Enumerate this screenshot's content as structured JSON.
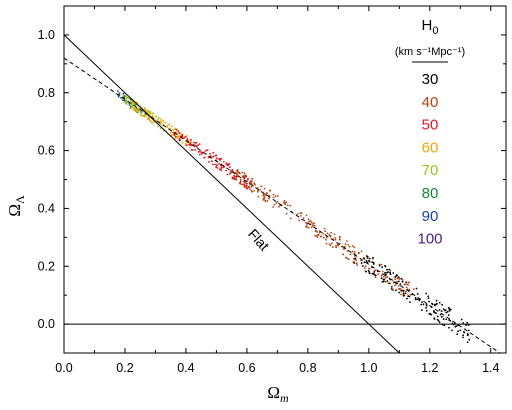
{
  "chart_data": {
    "type": "scatter",
    "xlabel": "Ωm",
    "ylabel": "ΩΛ",
    "xlim": [
      0.0,
      1.45
    ],
    "ylim": [
      -0.1,
      1.1
    ],
    "xticks": [
      0.0,
      0.2,
      0.4,
      0.6,
      0.8,
      1.0,
      1.2,
      1.4
    ],
    "yticks": [
      0.0,
      0.2,
      0.4,
      0.6,
      0.8,
      1.0
    ],
    "xtick_labels": [
      "0.0",
      "0.2",
      "0.4",
      "0.6",
      "0.8",
      "1.0",
      "1.2",
      "1.4"
    ],
    "ytick_labels": [
      "0.0",
      "0.2",
      "0.4",
      "0.6",
      "0.8",
      "1.0"
    ],
    "grid": false,
    "legend": {
      "title": "H",
      "title_sub": "0",
      "units": "(km s⁻¹Mpc⁻¹)",
      "placement": "top-right",
      "entries": [
        {
          "label": "30",
          "color": "#000000"
        },
        {
          "label": "40",
          "color": "#b8440f"
        },
        {
          "label": "50",
          "color": "#e8141e"
        },
        {
          "label": "60",
          "color": "#f5a30a"
        },
        {
          "label": "70",
          "color": "#96c81e"
        },
        {
          "label": "80",
          "color": "#138a3a"
        },
        {
          "label": "90",
          "color": "#1446a0"
        },
        {
          "label": "100",
          "color": "#4b1e82"
        }
      ]
    },
    "reference_lines": [
      {
        "kind": "flat",
        "label": "Flat",
        "style": "solid",
        "x": [
          0.0,
          1.1
        ],
        "y": [
          1.0,
          -0.1
        ]
      },
      {
        "kind": "fit",
        "style": "dashed",
        "x": [
          0.0,
          1.43
        ],
        "y": [
          0.92,
          -0.1
        ]
      },
      {
        "kind": "zero",
        "style": "solid",
        "x": [
          0.0,
          1.45
        ],
        "y": [
          0.0,
          0.0
        ]
      }
    ],
    "series": [
      {
        "color": "#4b1e82",
        "x_range": [
          0.17,
          0.21
        ],
        "n": 8
      },
      {
        "color": "#1446a0",
        "x_range": [
          0.17,
          0.23
        ],
        "n": 12
      },
      {
        "color": "#138a3a",
        "x_range": [
          0.18,
          0.27
        ],
        "n": 30
      },
      {
        "color": "#96c81e",
        "x_range": [
          0.19,
          0.32
        ],
        "n": 70
      },
      {
        "color": "#f5a30a",
        "x_range": [
          0.22,
          0.42
        ],
        "n": 110
      },
      {
        "color": "#e8141e",
        "x_range": [
          0.36,
          0.62
        ],
        "n": 150
      },
      {
        "color": "#b8440f",
        "x_range": [
          0.55,
          1.15
        ],
        "n": 260
      },
      {
        "color": "#000000",
        "x_range": [
          0.95,
          1.33
        ],
        "n": 170
      }
    ]
  }
}
